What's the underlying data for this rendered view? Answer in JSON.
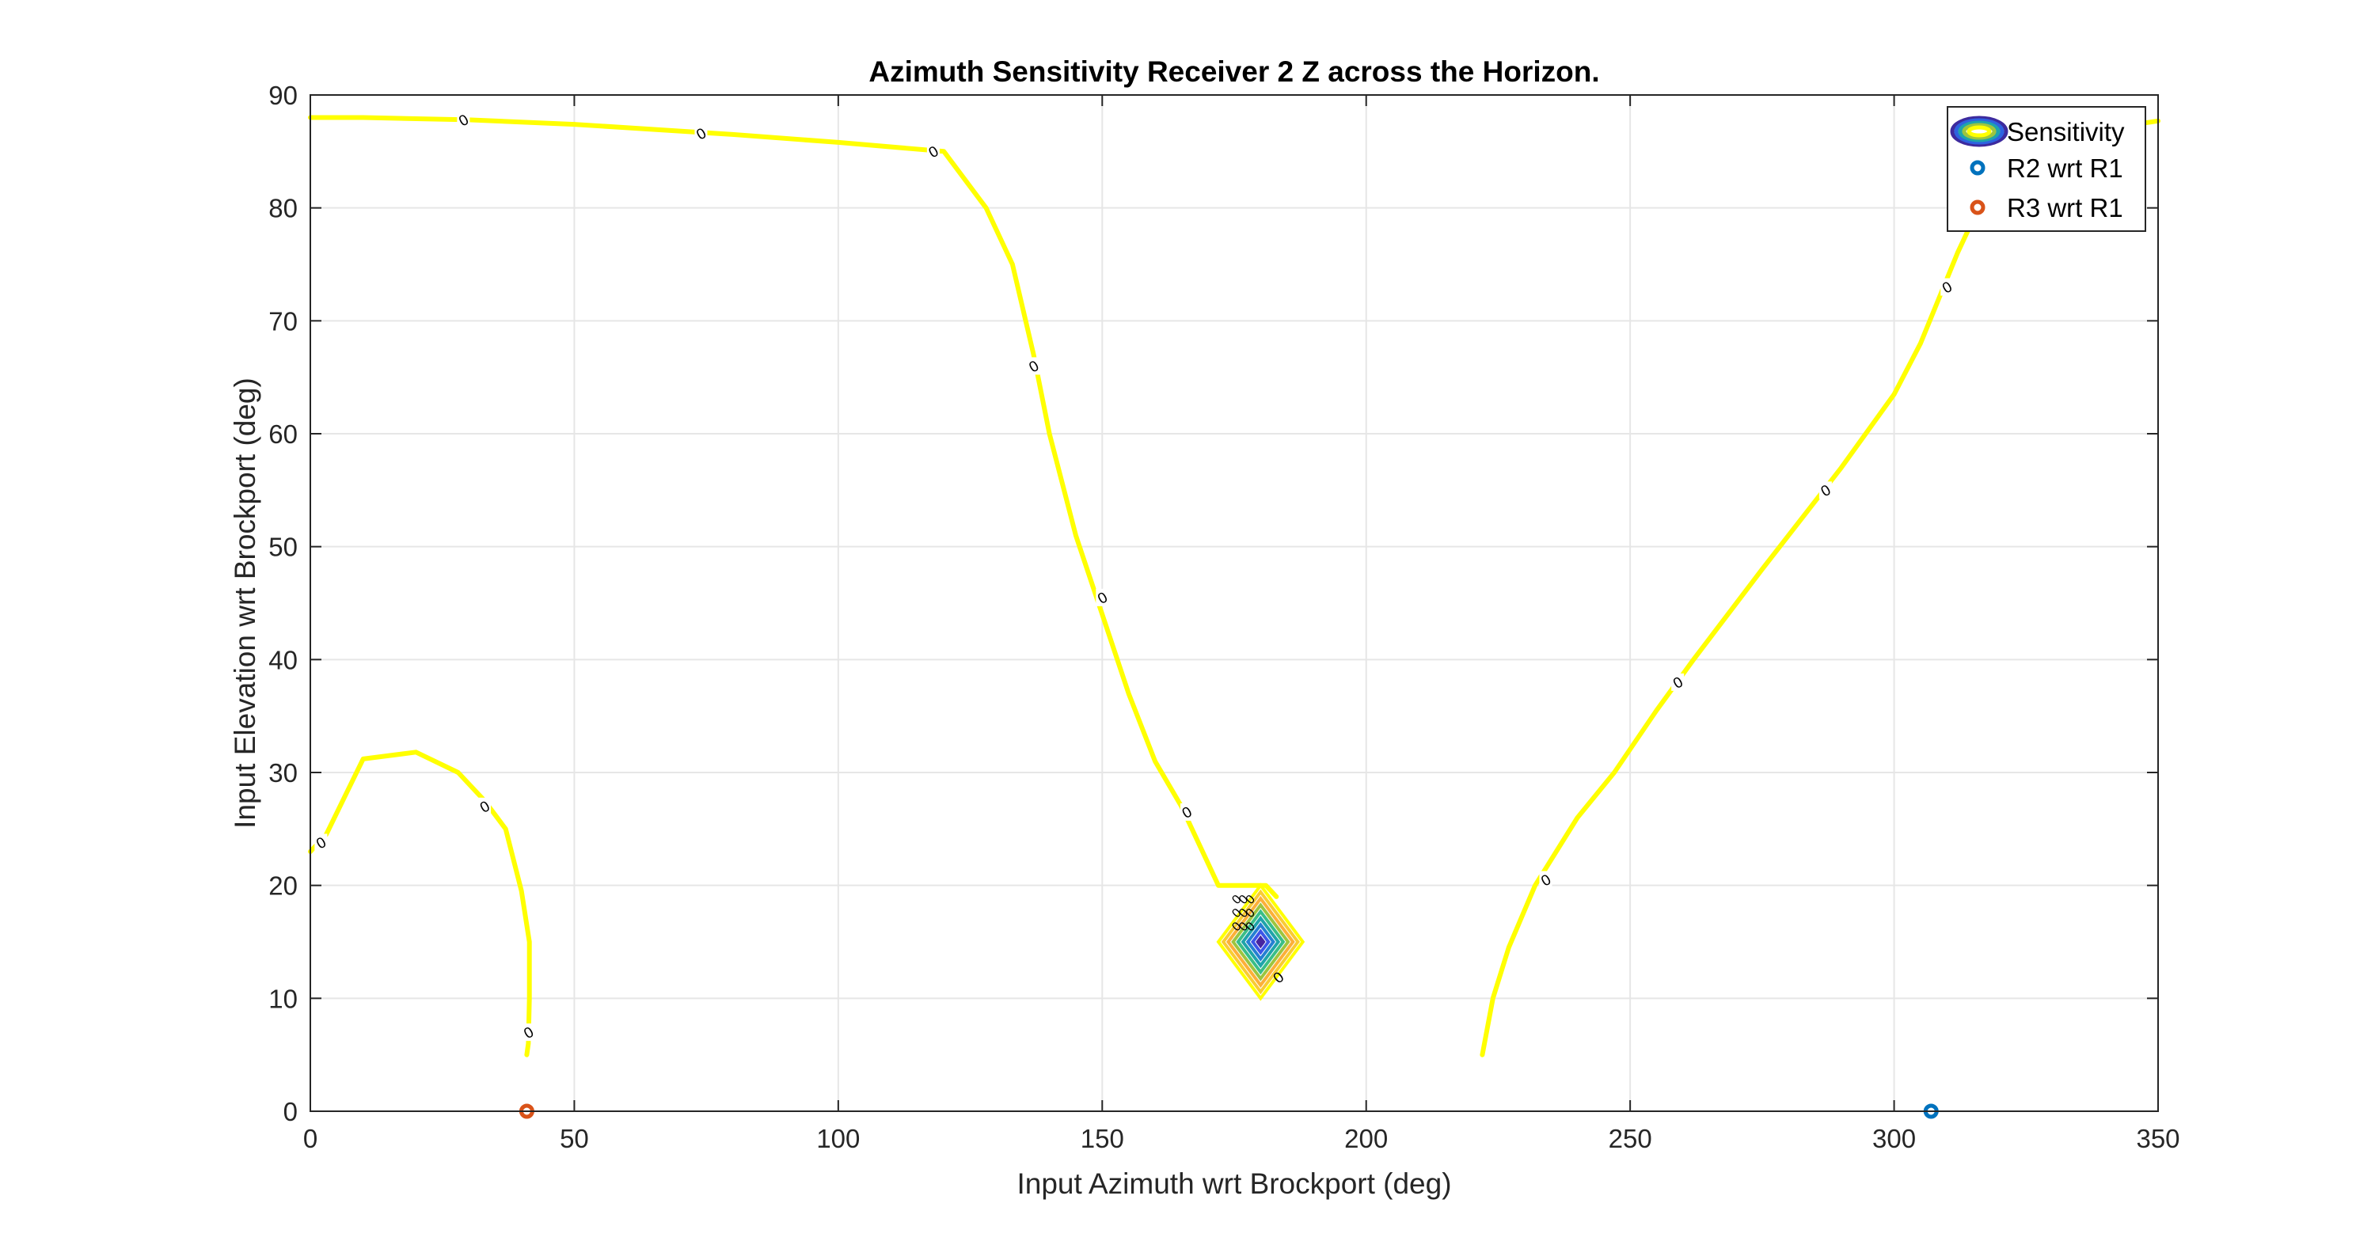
{
  "chart_data": {
    "type": "contour",
    "title": "Azimuth Sensitivity Receiver 2 Z across the Horizon.",
    "xlabel": "Input Azimuth wrt Brockport (deg)",
    "ylabel": "Input Elevation wrt Brockport (deg)",
    "xlim": [
      0,
      350
    ],
    "ylim": [
      0,
      90
    ],
    "xticks": [
      0,
      50,
      100,
      150,
      200,
      250,
      300,
      350
    ],
    "yticks": [
      0,
      10,
      20,
      30,
      40,
      50,
      60,
      70,
      80,
      90
    ],
    "grid": true,
    "legend_position": "top-right",
    "legend": [
      {
        "label": "Sensitivity",
        "marker": "contour-ellipses"
      },
      {
        "label": "R2 wrt R1",
        "marker": "circle",
        "color": "#0072BD"
      },
      {
        "label": "R3 wrt R1",
        "marker": "circle",
        "color": "#D95319"
      }
    ],
    "zero_level_color": "#FFFF00",
    "zero_contour_label": "0",
    "zero_contours": [
      {
        "name": "top-curve",
        "points": [
          [
            0,
            88
          ],
          [
            10,
            88
          ],
          [
            30,
            87.8
          ],
          [
            50,
            87.4
          ],
          [
            80,
            86.5
          ],
          [
            100,
            85.8
          ],
          [
            120,
            85
          ],
          [
            128,
            80
          ],
          [
            133,
            75
          ],
          [
            137,
            67
          ],
          [
            140,
            60
          ],
          [
            145,
            51
          ],
          [
            150,
            44
          ],
          [
            155,
            37
          ],
          [
            160,
            31
          ],
          [
            165,
            27
          ],
          [
            172,
            20
          ],
          [
            181,
            20
          ],
          [
            183,
            19
          ]
        ],
        "label_positions": [
          [
            29,
            87.8
          ],
          [
            74,
            86.6
          ],
          [
            118,
            85
          ],
          [
            137,
            66
          ],
          [
            150,
            45.5
          ],
          [
            166,
            26.5
          ]
        ]
      },
      {
        "name": "right-curve",
        "points": [
          [
            222,
            5
          ],
          [
            224,
            10
          ],
          [
            227,
            14.5
          ],
          [
            232,
            20
          ],
          [
            240,
            26
          ],
          [
            247,
            30
          ],
          [
            255,
            35.5
          ],
          [
            262,
            40
          ],
          [
            275,
            48
          ],
          [
            290,
            57
          ],
          [
            300,
            63.5
          ],
          [
            305,
            68
          ],
          [
            312,
            76
          ],
          [
            318,
            82
          ],
          [
            325,
            85.5
          ],
          [
            340,
            87
          ],
          [
            350,
            87.7
          ]
        ],
        "label_positions": [
          [
            234,
            20.5
          ],
          [
            259,
            38
          ],
          [
            287,
            55
          ],
          [
            310,
            73
          ]
        ]
      },
      {
        "name": "left-curve",
        "points": [
          [
            0,
            23
          ],
          [
            3,
            24.5
          ],
          [
            10,
            31.2
          ],
          [
            20,
            31.8
          ],
          [
            28,
            30
          ],
          [
            33,
            27.5
          ],
          [
            37,
            25
          ],
          [
            40,
            19.5
          ],
          [
            41.5,
            15
          ],
          [
            41.5,
            10
          ],
          [
            41.3,
            6
          ],
          [
            41,
            5
          ]
        ],
        "label_positions": [
          [
            2,
            23.8
          ],
          [
            33,
            27
          ],
          [
            41.3,
            7
          ]
        ]
      }
    ],
    "sensitivity_peak": {
      "center": [
        180,
        15
      ],
      "half_width_az": 8,
      "half_height_el": 5,
      "levels": 8,
      "colormap": [
        "#FFFF00",
        "#F9CC34",
        "#FCB039",
        "#9DC53F",
        "#3ABE87",
        "#1FA4AA",
        "#2580D2",
        "#3D55E8",
        "#4724A0"
      ],
      "labels": [
        "0",
        "0",
        "0",
        "0",
        "0",
        "0",
        "0",
        "0",
        "0"
      ]
    },
    "series": [
      {
        "name": "R2 wrt R1",
        "x": [
          307
        ],
        "y": [
          0
        ],
        "color": "#0072BD"
      },
      {
        "name": "R3 wrt R1",
        "x": [
          41
        ],
        "y": [
          0
        ],
        "color": "#D95319"
      }
    ]
  }
}
